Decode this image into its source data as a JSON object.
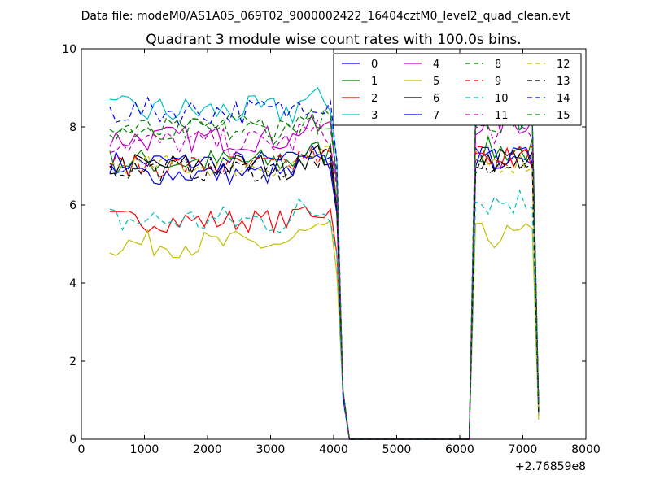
{
  "header": "Data file: modeM0/AS1A05_069T02_9000002422_16404cztM0_level2_quad_clean.evt",
  "chart_data": {
    "type": "line",
    "title": "Quadrant 3 module wise count rates with 100.0s bins.",
    "xlabel": "",
    "ylabel": "",
    "x_offset_label": "+2.76859e8",
    "xlim": [
      0,
      8000
    ],
    "ylim": [
      0,
      10
    ],
    "xticks": [
      0,
      1000,
      2000,
      3000,
      4000,
      5000,
      6000,
      7000,
      8000
    ],
    "yticks": [
      0,
      2,
      4,
      6,
      8,
      10
    ],
    "legend_position": "top-right",
    "segments": [
      {
        "start": 450,
        "end": 4050,
        "step": 100
      },
      {
        "start": 4150,
        "end": 6150,
        "step": 100
      },
      {
        "start": 6250,
        "end": 7150,
        "step": 100
      },
      {
        "start": 7250,
        "end": 7250,
        "step": 100
      }
    ],
    "series": [
      {
        "name": "0",
        "color": "#0000ff",
        "dash": false,
        "base": 7.1,
        "noise": 0.3,
        "gap_base": 7.2,
        "drop_value": 0.8
      },
      {
        "name": "1",
        "color": "#008000",
        "dash": false,
        "base": 7.1,
        "noise": 0.35,
        "gap_base": 7.4,
        "drop_value": 0.7
      },
      {
        "name": "2",
        "color": "#ff0000",
        "dash": false,
        "base": 5.6,
        "noise": 0.3,
        "gap_base": 7.2,
        "drop_value": 0.6
      },
      {
        "name": "3",
        "color": "#00bfbf",
        "dash": false,
        "base": 8.4,
        "noise": 0.4,
        "gap_base": 8.3,
        "drop_value": 0.9
      },
      {
        "name": "4",
        "color": "#bf00bf",
        "dash": false,
        "base": 7.7,
        "noise": 0.35,
        "gap_base": 8.1,
        "drop_value": 0.8
      },
      {
        "name": "5",
        "color": "#bfbf00",
        "dash": false,
        "base": 5.0,
        "noise": 0.35,
        "gap_base": 5.2,
        "drop_value": 0.5
      },
      {
        "name": "6",
        "color": "#000000",
        "dash": false,
        "base": 7.0,
        "noise": 0.35,
        "gap_base": 7.2,
        "drop_value": 0.7
      },
      {
        "name": "7",
        "color": "#0000ff",
        "dash": false,
        "base": 6.8,
        "noise": 0.3,
        "gap_base": 7.2,
        "drop_value": 0.7
      },
      {
        "name": "8",
        "color": "#008000",
        "dash": true,
        "base": 8.0,
        "noise": 0.35,
        "gap_base": 8.2,
        "drop_value": 0.8
      },
      {
        "name": "9",
        "color": "#ff0000",
        "dash": true,
        "base": 7.0,
        "noise": 0.3,
        "gap_base": 7.3,
        "drop_value": 0.7
      },
      {
        "name": "10",
        "color": "#00bfbf",
        "dash": true,
        "base": 5.6,
        "noise": 0.4,
        "gap_base": 6.1,
        "drop_value": 0.6
      },
      {
        "name": "11",
        "color": "#bf00bf",
        "dash": true,
        "base": 7.6,
        "noise": 0.35,
        "gap_base": 7.9,
        "drop_value": 0.8
      },
      {
        "name": "12",
        "color": "#bfbf00",
        "dash": true,
        "base": 7.0,
        "noise": 0.3,
        "gap_base": 7.1,
        "drop_value": 0.7
      },
      {
        "name": "13",
        "color": "#000000",
        "dash": true,
        "base": 6.9,
        "noise": 0.3,
        "gap_base": 7.0,
        "drop_value": 0.7
      },
      {
        "name": "14",
        "color": "#0000ff",
        "dash": true,
        "base": 8.4,
        "noise": 0.35,
        "gap_base": 8.4,
        "drop_value": 0.9
      },
      {
        "name": "15",
        "color": "#008000",
        "dash": true,
        "base": 7.9,
        "noise": 0.35,
        "gap_base": 8.3,
        "drop_value": 0.8
      }
    ]
  }
}
